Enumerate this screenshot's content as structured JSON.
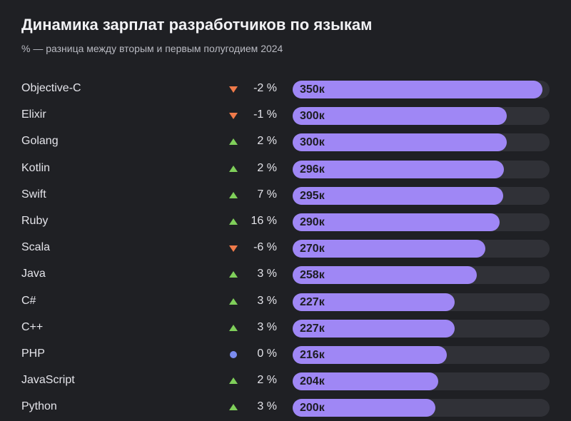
{
  "chart_data": {
    "type": "bar",
    "orientation": "horizontal",
    "title": "Динамика зарплат разработчиков по языкам",
    "subtitle": "% — разница между вторым и первым полугодием 2024",
    "xlim": [
      0,
      360
    ],
    "colors": {
      "bar": "#9f87f5",
      "track": "#303137",
      "up": "#7fcf5a",
      "down": "#f07a4a",
      "flat": "#7b8cf0"
    },
    "rows": [
      {
        "category": "Objective-C",
        "value": 350,
        "label": "350к",
        "change": "-2 %",
        "trend": "down"
      },
      {
        "category": "Elixir",
        "value": 300,
        "label": "300к",
        "change": "-1 %",
        "trend": "down"
      },
      {
        "category": "Golang",
        "value": 300,
        "label": "300к",
        "change": "2 %",
        "trend": "up"
      },
      {
        "category": "Kotlin",
        "value": 296,
        "label": "296к",
        "change": "2 %",
        "trend": "up"
      },
      {
        "category": "Swift",
        "value": 295,
        "label": "295к",
        "change": "7 %",
        "trend": "up"
      },
      {
        "category": "Ruby",
        "value": 290,
        "label": "290к",
        "change": "16 %",
        "trend": "up"
      },
      {
        "category": "Scala",
        "value": 270,
        "label": "270к",
        "change": "-6 %",
        "trend": "down"
      },
      {
        "category": "Java",
        "value": 258,
        "label": "258к",
        "change": "3 %",
        "trend": "up"
      },
      {
        "category": "C#",
        "value": 227,
        "label": "227к",
        "change": "3 %",
        "trend": "up"
      },
      {
        "category": "C++",
        "value": 227,
        "label": "227к",
        "change": "3 %",
        "trend": "up"
      },
      {
        "category": "PHP",
        "value": 216,
        "label": "216к",
        "change": "0 %",
        "trend": "flat"
      },
      {
        "category": "JavaScript",
        "value": 204,
        "label": "204к",
        "change": "2 %",
        "trend": "up"
      },
      {
        "category": "Python",
        "value": 200,
        "label": "200к",
        "change": "3 %",
        "trend": "up"
      }
    ]
  }
}
